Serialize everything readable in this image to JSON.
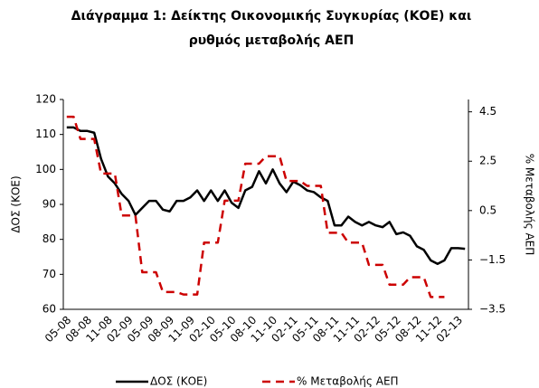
{
  "chart_data": {
    "type": "line",
    "title": [
      "Διάγραμμα 1: Δείκτης Οικονομικής Συγκυρίας (ΚΟΕ) και",
      "ρυθμός μεταβολής ΑΕΠ"
    ],
    "y_label": "ΔΟΣ (ΚΟΕ)",
    "y2_label": "% Μεταβολής ΑΕΠ",
    "categories": [
      "05-08",
      null,
      null,
      "08-08",
      null,
      null,
      "11-08",
      null,
      null,
      "02-09",
      null,
      null,
      "05-09",
      null,
      null,
      "08-09",
      null,
      null,
      "11-09",
      null,
      null,
      "02-10",
      null,
      null,
      "05-10",
      null,
      null,
      "08-10",
      null,
      null,
      "11-10",
      null,
      null,
      "02-11",
      null,
      null,
      "05-11",
      null,
      null,
      "08-11",
      null,
      null,
      "11-11",
      null,
      null,
      "02-12",
      null,
      null,
      "05-12",
      null,
      null,
      "08-12",
      null,
      null,
      "11-12",
      null,
      null,
      "02-13",
      null
    ],
    "series": [
      {
        "name": "ΔΟΣ (ΚΟΕ)",
        "color": "#000000",
        "dashed": false,
        "axis": "y",
        "values": [
          112,
          112,
          111,
          111,
          110.5,
          103,
          98,
          96,
          93,
          91,
          87,
          89,
          91,
          91,
          88.5,
          88,
          91,
          91,
          92,
          94,
          91,
          94,
          91,
          94,
          90.5,
          89,
          94,
          95,
          99.5,
          96,
          100,
          96,
          93.5,
          96.5,
          95.5,
          94,
          93.5,
          92,
          91,
          84,
          84,
          86.5,
          85,
          84,
          85,
          84,
          83.5,
          85,
          81.5,
          82,
          81,
          78,
          77,
          74,
          73,
          74,
          77.5,
          77.5,
          77.3
        ]
      },
      {
        "name": "% Μεταβολής ΑΕΠ",
        "color": "#cc0000",
        "dashed": true,
        "axis": "y2",
        "values": [
          4.3,
          4.3,
          3.4,
          3.4,
          3.4,
          2.0,
          2.0,
          2.0,
          0.3,
          0.3,
          0.3,
          -2.0,
          -2.0,
          -2.0,
          -2.8,
          -2.8,
          -2.8,
          -2.9,
          -2.9,
          -2.9,
          -0.8,
          -0.8,
          -0.8,
          0.9,
          0.9,
          0.9,
          2.4,
          2.4,
          2.4,
          2.7,
          2.7,
          2.7,
          1.7,
          1.7,
          1.7,
          1.5,
          1.5,
          1.5,
          -0.4,
          -0.4,
          -0.4,
          -0.8,
          -0.8,
          -0.8,
          -1.7,
          -1.7,
          -1.7,
          -2.5,
          -2.5,
          -2.5,
          -2.2,
          -2.2,
          -2.2,
          -3.0,
          -3.0,
          -3.0,
          null,
          null,
          null
        ]
      }
    ],
    "ylim": [
      60,
      120
    ],
    "yticks": [
      60,
      70,
      80,
      90,
      100,
      110,
      120
    ],
    "y2lim": [
      -3.5,
      5.0
    ],
    "y2ticks": [
      {
        "value": -3.5,
        "label": "−3.5"
      },
      {
        "value": -1.5,
        "label": "−1.5"
      },
      0.5,
      2.5,
      4.5
    ],
    "grid": false,
    "legend": "bottom"
  }
}
